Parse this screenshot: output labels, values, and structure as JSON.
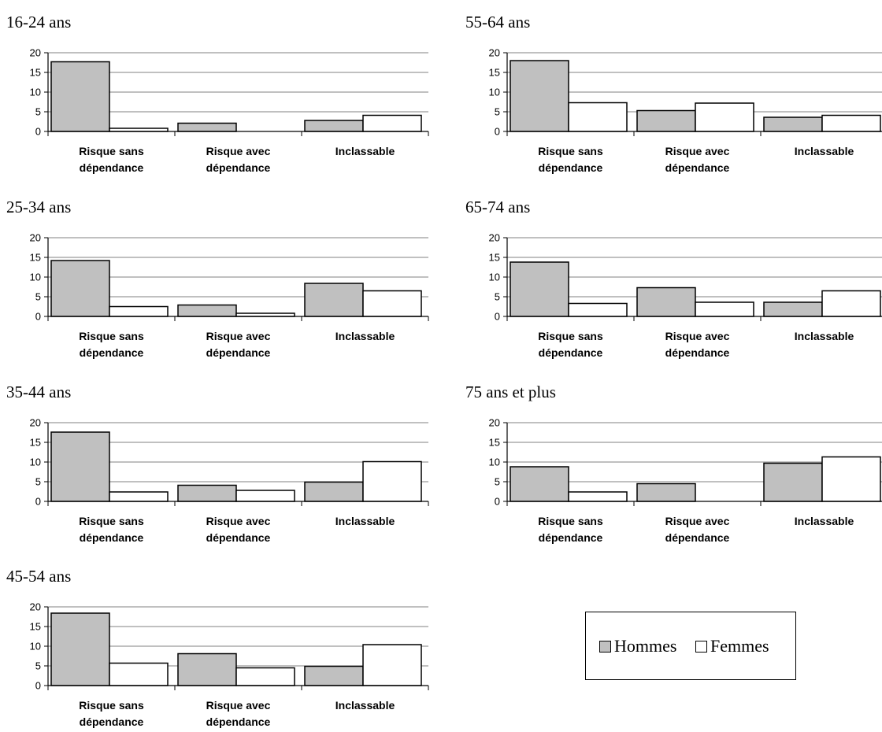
{
  "colors": {
    "hommes": "#c0c0c0",
    "femmes": "#ffffff",
    "gridline": "#808080",
    "axis": "#000000"
  },
  "legend": {
    "items": [
      {
        "label": "Hommes",
        "color": "#c0c0c0"
      },
      {
        "label": "Femmes",
        "color": "#ffffff"
      }
    ]
  },
  "chart_data": [
    {
      "type": "bar",
      "title": "16-24 ans",
      "categories": [
        "Risque sans dépendance",
        "Risque avec dépendance",
        "Inclassable"
      ],
      "category_lines": [
        [
          "Risque sans",
          "dépendance"
        ],
        [
          "Risque avec",
          "dépendance"
        ],
        [
          "Inclassable"
        ]
      ],
      "series": [
        {
          "name": "Hommes",
          "values": [
            17.7,
            2.1,
            2.8
          ]
        },
        {
          "name": "Femmes",
          "values": [
            0.8,
            0,
            4.1
          ]
        }
      ],
      "ylim": [
        0,
        20
      ],
      "yticks": [
        0,
        5,
        10,
        15,
        20
      ],
      "grid": true
    },
    {
      "type": "bar",
      "title": "25-34 ans",
      "categories": [
        "Risque sans dépendance",
        "Risque avec dépendance",
        "Inclassable"
      ],
      "category_lines": [
        [
          "Risque sans",
          "dépendance"
        ],
        [
          "Risque avec",
          "dépendance"
        ],
        [
          "Inclassable"
        ]
      ],
      "series": [
        {
          "name": "Hommes",
          "values": [
            14.2,
            2.9,
            8.4
          ]
        },
        {
          "name": "Femmes",
          "values": [
            2.5,
            0.8,
            6.5
          ]
        }
      ],
      "ylim": [
        0,
        20
      ],
      "yticks": [
        0,
        5,
        10,
        15,
        20
      ],
      "grid": true
    },
    {
      "type": "bar",
      "title": "35-44 ans",
      "categories": [
        "Risque sans dépendance",
        "Risque avec dépendance",
        "Inclassable"
      ],
      "category_lines": [
        [
          "Risque sans",
          "dépendance"
        ],
        [
          "Risque avec",
          "dépendance"
        ],
        [
          "Inclassable"
        ]
      ],
      "series": [
        {
          "name": "Hommes",
          "values": [
            17.6,
            4.1,
            4.9
          ]
        },
        {
          "name": "Femmes",
          "values": [
            2.4,
            2.8,
            10.1
          ]
        }
      ],
      "ylim": [
        0,
        20
      ],
      "yticks": [
        0,
        5,
        10,
        15,
        20
      ],
      "grid": true
    },
    {
      "type": "bar",
      "title": "45-54 ans",
      "categories": [
        "Risque sans dépendance",
        "Risque avec dépendance",
        "Inclassable"
      ],
      "category_lines": [
        [
          "Risque sans",
          "dépendance"
        ],
        [
          "Risque avec",
          "dépendance"
        ],
        [
          "Inclassable"
        ]
      ],
      "series": [
        {
          "name": "Hommes",
          "values": [
            18.4,
            8.1,
            4.9
          ]
        },
        {
          "name": "Femmes",
          "values": [
            5.7,
            4.5,
            10.4
          ]
        }
      ],
      "ylim": [
        0,
        20
      ],
      "yticks": [
        0,
        5,
        10,
        15,
        20
      ],
      "grid": true
    },
    {
      "type": "bar",
      "title": "55-64 ans",
      "categories": [
        "Risque sans dépendance",
        "Risque avec dépendance",
        "Inclassable"
      ],
      "category_lines": [
        [
          "Risque sans",
          "dépendance"
        ],
        [
          "Risque avec",
          "dépendance"
        ],
        [
          "Inclassable"
        ]
      ],
      "series": [
        {
          "name": "Hommes",
          "values": [
            18,
            5.3,
            3.6
          ]
        },
        {
          "name": "Femmes",
          "values": [
            7.3,
            7.2,
            4.1
          ]
        }
      ],
      "ylim": [
        0,
        20
      ],
      "yticks": [
        0,
        5,
        10,
        15,
        20
      ],
      "grid": true
    },
    {
      "type": "bar",
      "title": "65-74 ans",
      "categories": [
        "Risque sans dépendance",
        "Risque avec dépendance",
        "Inclassable"
      ],
      "category_lines": [
        [
          "Risque sans",
          "dépendance"
        ],
        [
          "Risque avec",
          "dépendance"
        ],
        [
          "Inclassable"
        ]
      ],
      "series": [
        {
          "name": "Hommes",
          "values": [
            13.8,
            7.3,
            3.6
          ]
        },
        {
          "name": "Femmes",
          "values": [
            3.3,
            3.6,
            6.5
          ]
        }
      ],
      "ylim": [
        0,
        20
      ],
      "yticks": [
        0,
        5,
        10,
        15,
        20
      ],
      "grid": true
    },
    {
      "type": "bar",
      "title": "75 ans et plus",
      "categories": [
        "Risque sans dépendance",
        "Risque avec dépendance",
        "Inclassable"
      ],
      "category_lines": [
        [
          "Risque sans",
          "dépendance"
        ],
        [
          "Risque avec",
          "dépendance"
        ],
        [
          "Inclassable"
        ]
      ],
      "series": [
        {
          "name": "Hommes",
          "values": [
            8.8,
            4.5,
            9.7
          ]
        },
        {
          "name": "Femmes",
          "values": [
            2.4,
            0,
            11.3
          ]
        }
      ],
      "ylim": [
        0,
        20
      ],
      "yticks": [
        0,
        5,
        10,
        15,
        20
      ],
      "grid": true
    }
  ]
}
